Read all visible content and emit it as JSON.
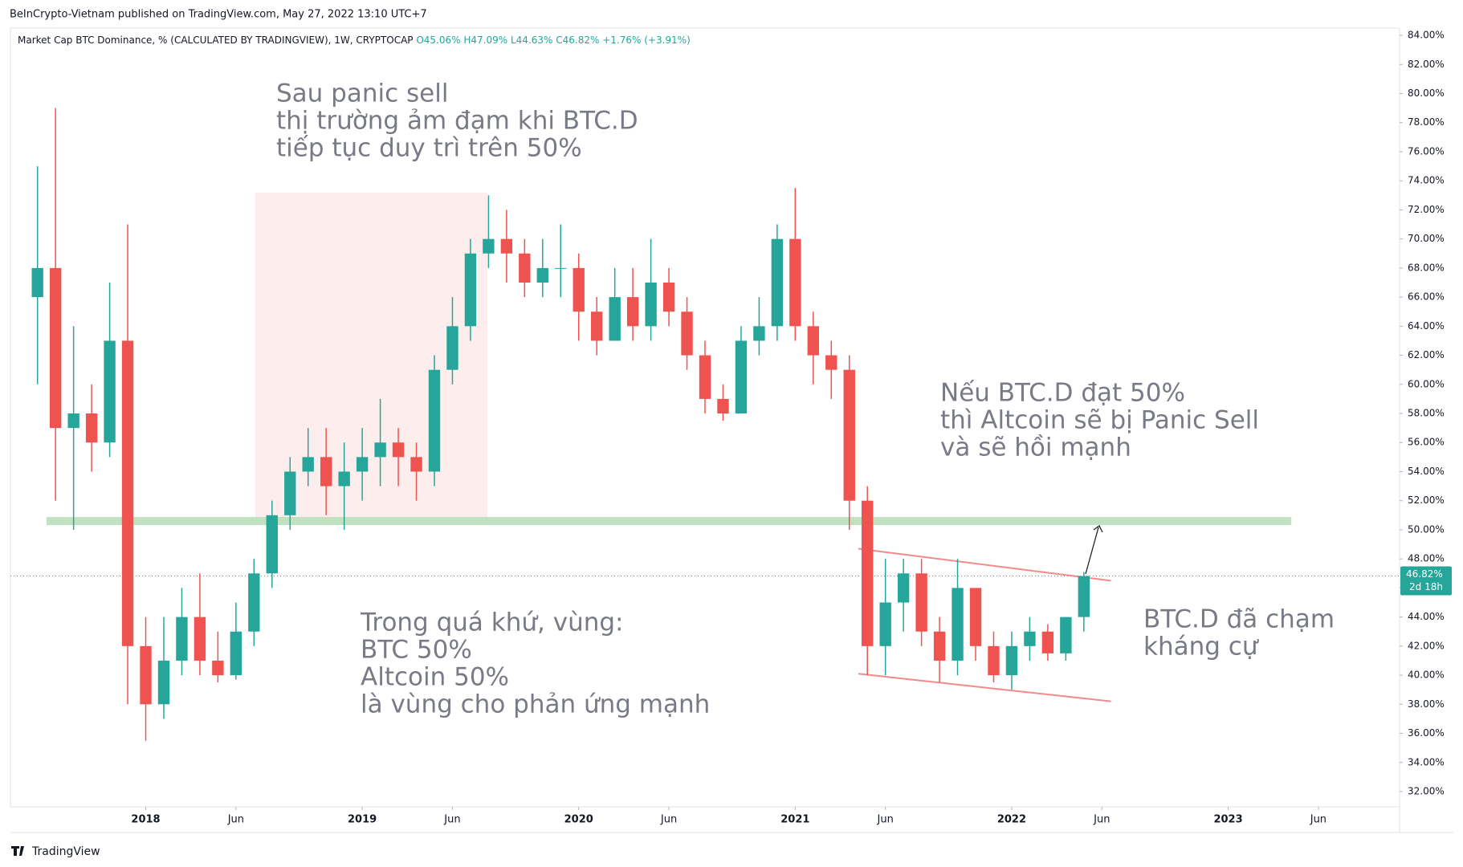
{
  "header": "BeInCrypto-Vietnam published on TradingView.com, May 27, 2022 13:10 UTC+7",
  "footer": "TradingView",
  "chart_data": {
    "type": "candlestick",
    "legend": {
      "symbol": "Market Cap BTC Dominance, % (CALCULATED BY TRADINGVIEW), 1W, CRYPTOCAP",
      "open": "O45.06%",
      "high": "H47.09%",
      "low": "L44.63%",
      "close": "C46.82%",
      "change": "+1.76% (+3.91%)"
    },
    "last_price": {
      "value": 46.82,
      "label": "46.82%",
      "countdown": "2d 18h"
    },
    "up_color": "#26a69a",
    "down_color": "#ef5350",
    "xlim": [
      "2017-06",
      "2023-11"
    ],
    "xticks": [
      {
        "value": "2018-01",
        "label": "2018"
      },
      {
        "value": "2018-06",
        "label": "Jun"
      },
      {
        "value": "2019-01",
        "label": "2019"
      },
      {
        "value": "2019-06",
        "label": "Jun"
      },
      {
        "value": "2020-01",
        "label": "2020"
      },
      {
        "value": "2020-06",
        "label": "Jun"
      },
      {
        "value": "2021-01",
        "label": "2021"
      },
      {
        "value": "2021-06",
        "label": "Jun"
      },
      {
        "value": "2022-01",
        "label": "2022"
      },
      {
        "value": "2022-06",
        "label": "Jun"
      },
      {
        "value": "2023-01",
        "label": "2023"
      },
      {
        "value": "2023-06",
        "label": "Jun"
      }
    ],
    "ylim": [
      30.95,
      84.5
    ],
    "yticks": [
      {
        "value": 32,
        "label": "32.00%"
      },
      {
        "value": 34,
        "label": "34.00%"
      },
      {
        "value": 36,
        "label": "36.00%"
      },
      {
        "value": 38,
        "label": "38.00%"
      },
      {
        "value": 40,
        "label": "40.00%"
      },
      {
        "value": 42,
        "label": "42.00%"
      },
      {
        "value": 44,
        "label": "44.00%"
      },
      {
        "value": 46,
        "label": "46.00%"
      },
      {
        "value": 48,
        "label": "48.00%"
      },
      {
        "value": 50,
        "label": "50.00%"
      },
      {
        "value": 52,
        "label": "52.00%"
      },
      {
        "value": 54,
        "label": "54.00%"
      },
      {
        "value": 56,
        "label": "56.00%"
      },
      {
        "value": 58,
        "label": "58.00%"
      },
      {
        "value": 60,
        "label": "60.00%"
      },
      {
        "value": 62,
        "label": "62.00%"
      },
      {
        "value": 64,
        "label": "64.00%"
      },
      {
        "value": 66,
        "label": "66.00%"
      },
      {
        "value": 68,
        "label": "68.00%"
      },
      {
        "value": 70,
        "label": "70.00%"
      },
      {
        "value": 72,
        "label": "72.00%"
      },
      {
        "value": 74,
        "label": "74.00%"
      },
      {
        "value": 76,
        "label": "76.00%"
      },
      {
        "value": 78,
        "label": "78.00%"
      },
      {
        "value": 80,
        "label": "80.00%"
      },
      {
        "value": 82,
        "label": "82.00%"
      },
      {
        "value": 84,
        "label": "84.00%"
      }
    ],
    "x": [
      "2017-07",
      "2017-08",
      "2017-09",
      "2017-10",
      "2017-11",
      "2017-12",
      "2018-01",
      "2018-02",
      "2018-03",
      "2018-04",
      "2018-05",
      "2018-06",
      "2018-07",
      "2018-08",
      "2018-09",
      "2018-10",
      "2018-11",
      "2018-12",
      "2019-01",
      "2019-02",
      "2019-03",
      "2019-04",
      "2019-05",
      "2019-06",
      "2019-07",
      "2019-08",
      "2019-09",
      "2019-10",
      "2019-11",
      "2019-12",
      "2020-01",
      "2020-02",
      "2020-03",
      "2020-04",
      "2020-05",
      "2020-06",
      "2020-07",
      "2020-08",
      "2020-09",
      "2020-10",
      "2020-11",
      "2020-12",
      "2021-01",
      "2021-02",
      "2021-03",
      "2021-04",
      "2021-05",
      "2021-06",
      "2021-07",
      "2021-08",
      "2021-09",
      "2021-10",
      "2021-11",
      "2021-12",
      "2022-01",
      "2022-02",
      "2022-03",
      "2022-04",
      "2022-05"
    ],
    "open": [
      66,
      68,
      57,
      58,
      56,
      63,
      42,
      38,
      41,
      44,
      41,
      40,
      43,
      47,
      51,
      54,
      55,
      53,
      54,
      55,
      56,
      55,
      54,
      61,
      64,
      69,
      70,
      69,
      67,
      68,
      68,
      65,
      63,
      66,
      64,
      67,
      65,
      62,
      59,
      58,
      63,
      64,
      70,
      64,
      62,
      61,
      52,
      42,
      45,
      47,
      43,
      41,
      46,
      42,
      40,
      42,
      43,
      41.5,
      44
    ],
    "high": [
      75,
      79,
      64,
      60,
      67,
      71,
      44,
      44,
      46,
      47,
      43,
      45,
      48,
      52,
      55,
      57,
      57,
      56,
      57,
      59,
      57,
      56,
      62,
      66,
      70,
      73,
      72,
      70,
      70,
      71,
      69,
      66,
      68,
      68,
      70,
      68,
      66,
      63,
      60,
      64,
      66,
      71,
      73.5,
      65,
      63,
      62,
      53,
      48,
      48,
      48,
      44,
      48,
      46,
      43,
      43,
      44,
      43.5,
      44,
      47.1
    ],
    "low": [
      60,
      52,
      50,
      54,
      55,
      38,
      35.5,
      37,
      40,
      40,
      39.5,
      39.7,
      42,
      46,
      50,
      53,
      51,
      50,
      52,
      53,
      53,
      52,
      53,
      60,
      63,
      68,
      67,
      66,
      66,
      66,
      63,
      62,
      63,
      63,
      63,
      64,
      61,
      58,
      57.5,
      58,
      62,
      63,
      63,
      60,
      59,
      50,
      40,
      40,
      43,
      42,
      39.5,
      40,
      41,
      39.5,
      39,
      41,
      41,
      41,
      43
    ],
    "close": [
      68,
      57,
      58,
      56,
      63,
      42,
      38,
      41,
      44,
      41,
      40,
      43,
      47,
      51,
      54,
      55,
      53,
      54,
      55,
      56,
      55,
      54,
      61,
      64,
      69,
      70,
      69,
      67,
      68,
      68,
      65,
      63,
      66,
      64,
      67,
      65,
      62,
      59,
      58,
      63,
      64,
      70,
      64,
      62,
      61,
      52,
      42,
      45,
      47,
      43,
      41,
      46,
      42,
      40,
      42,
      43,
      41.5,
      44,
      46.82
    ],
    "support_level": 50.6,
    "channel": {
      "upper": [
        {
          "x": "2021-05",
          "y": 48.7
        },
        {
          "x": "2022-07",
          "y": 46.5
        }
      ],
      "lower": [
        {
          "x": "2021-05",
          "y": 40.1
        },
        {
          "x": "2022-07",
          "y": 38.2
        }
      ]
    },
    "annotations": [
      {
        "lines": [
          "Sau panic sell",
          "thị trường ảm đạm khi BTC.D",
          "tiếp tục duy trì trên 50%"
        ]
      },
      {
        "lines": [
          "Nếu BTC.D đạt 50%",
          "thì Altcoin sẽ bị Panic Sell",
          "và sẽ hồi mạnh"
        ]
      },
      {
        "lines": [
          "Trong quá khứ, vùng:",
          "BTC 50%",
          "Altcoin 50%",
          "là vùng cho phản ứng mạnh"
        ]
      },
      {
        "lines": [
          "BTC.D đã chạm",
          "kháng cự"
        ]
      }
    ]
  }
}
